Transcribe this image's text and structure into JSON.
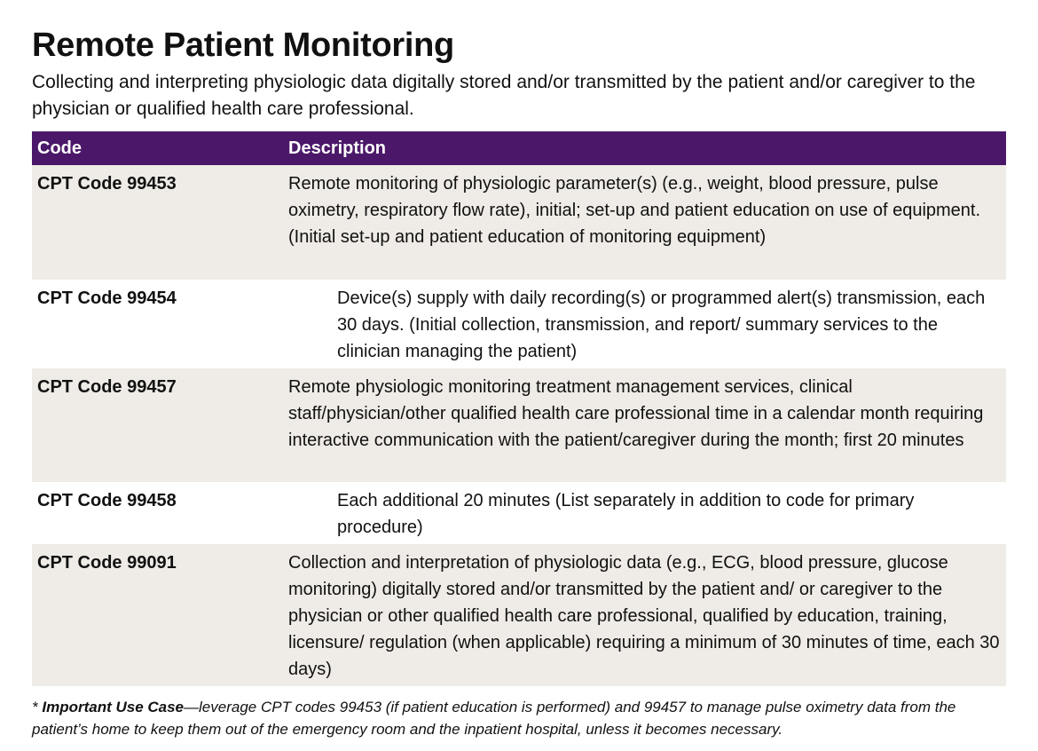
{
  "header": {
    "title": "Remote Patient Monitoring",
    "subtitle": "Collecting and interpreting physiologic data digitally stored and/or transmitted by the patient and/or caregiver to the physician or qualified health care professional."
  },
  "table": {
    "columns": [
      "Code",
      "Description"
    ],
    "rows": [
      [
        "CPT Code 99453",
        "Remote monitoring of physiologic parameter(s) (e.g., weight, blood pressure, pulse oximetry, respiratory flow rate), initial; set-up and patient education on use of equipment. (Initial set-up and patient education of monitoring equipment)"
      ],
      [
        "CPT Code 99454",
        "Device(s) supply with daily recording(s) or programmed alert(s) transmission, each 30 days. (Initial collection, transmission, and report/ summary services to the clinician managing the patient)"
      ],
      [
        "CPT Code 99457",
        "Remote physiologic monitoring treatment management services, clinical staff/physician/other qualified health care professional time in a calendar month requiring interactive communication with the patient/caregiver during the month; first 20 minutes"
      ],
      [
        "CPT Code 99458",
        "Each additional 20 minutes (List separately in addition to code for primary procedure)"
      ],
      [
        "CPT Code 99091",
        "Collection and interpretation of physiologic data (e.g., ECG, blood pressure, glucose monitoring) digitally stored and/or transmitted by the patient and/ or caregiver to the physician or other qualified health care professional, qualified by education, training, licensure/ regulation (when applicable) requiring a minimum of 30 minutes of time, each 30 days)"
      ]
    ]
  },
  "footnote": {
    "marker": "*",
    "label": "Important Use Case",
    "text": "—leverage CPT codes 99453 (if patient education is performed) and 99457 to manage pulse oximetry data from the patient’s home to keep them out of the emergency room and the inpatient hospital, unless it becomes necessary."
  }
}
